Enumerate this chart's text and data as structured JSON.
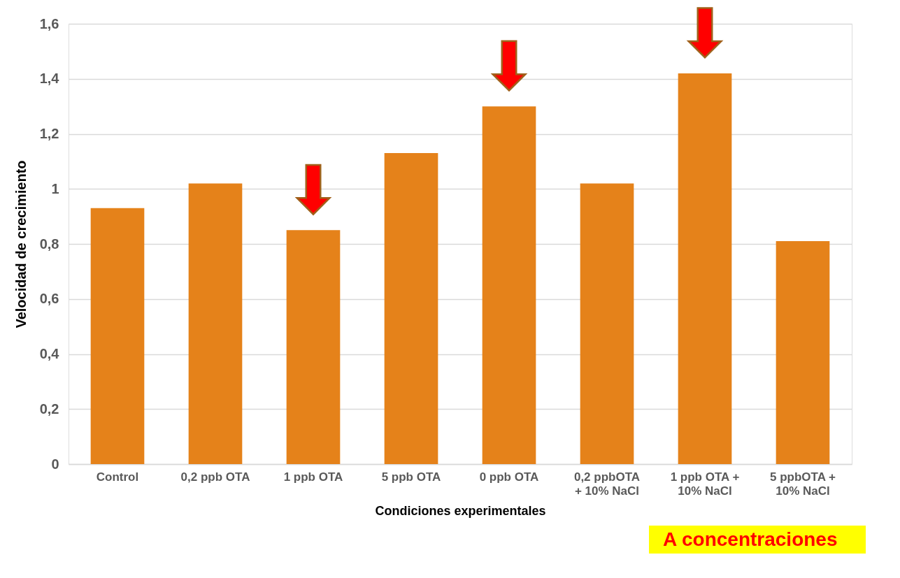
{
  "chart_data": {
    "type": "bar",
    "categories": [
      "Control",
      "0,2 ppb OTA",
      "1 ppb OTA",
      "5 ppb OTA",
      "0 ppb OTA",
      "0,2 ppbOTA\n+ 10% NaCl",
      "1 ppb OTA +\n10% NaCl",
      "5 ppbOTA +\n10% NaCl"
    ],
    "values": [
      0.93,
      1.02,
      0.85,
      1.13,
      1.3,
      1.02,
      1.42,
      0.81
    ],
    "color": "#e5821a",
    "xlabel": "Condiciones experimentales",
    "ylabel": "Velocidad de crecimiento",
    "ylim": [
      0,
      1.6
    ],
    "yticks": [
      0,
      {
        "value": 0.2,
        "label": "0,2"
      },
      {
        "value": 0.4,
        "label": "0,4"
      },
      {
        "value": 0.6,
        "label": "0,6"
      },
      {
        "value": 0.8,
        "label": "0,8"
      },
      1,
      {
        "value": 1.2,
        "label": "1,2"
      },
      {
        "value": 1.4,
        "label": "1,4"
      },
      {
        "value": 1.6,
        "label": "1,6"
      }
    ],
    "grid": "y",
    "annotations": [
      "A concentraciones"
    ]
  }
}
